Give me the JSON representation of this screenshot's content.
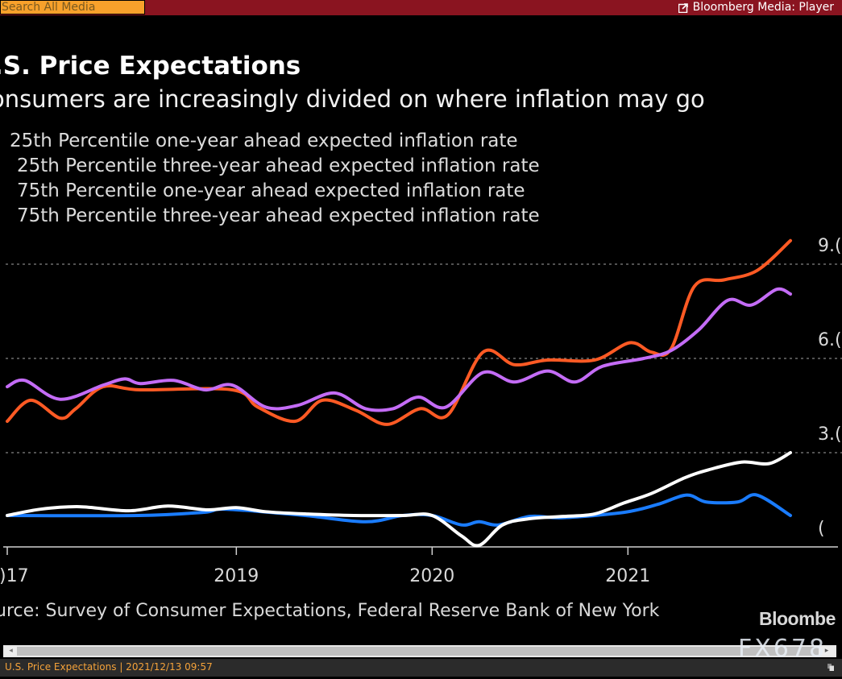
{
  "topbar": {
    "search_placeholder": "Search All Media",
    "player_label": "Bloomberg Media: Player",
    "player_icon": "external-link-icon"
  },
  "chart_data": {
    "type": "line",
    "title": ".S. Price Expectations",
    "subtitle": "onsumers are increasingly divided on where inflation may go",
    "xlabel": "",
    "ylabel": "",
    "ylim": [
      0,
      10
    ],
    "y_ticks": [
      0,
      3,
      6,
      9
    ],
    "y_tick_labels": [
      "(",
      "3.(",
      "6.(",
      "9.("
    ],
    "x_ticks": [
      {
        "label": ")17",
        "x": 2017.83
      },
      {
        "label": "2019",
        "x": 2019.0
      },
      {
        "label": "2020",
        "x": 2020.0
      },
      {
        "label": "2021",
        "x": 2021.0
      }
    ],
    "x_range": [
      2017.83,
      2021.83
    ],
    "grid": "horizontal-dotted",
    "legend_placement": "top-left",
    "source": "urce: Survey of Consumer Expectations, Federal Reserve Bank of New York",
    "series": [
      {
        "name": "25th Percentile one-year ahead expected inflation rate",
        "color": "#ffffff",
        "x": [
          2017.83,
          2018.0,
          2018.2,
          2018.45,
          2018.65,
          2018.85,
          2019.0,
          2019.15,
          2019.35,
          2019.6,
          2019.85,
          2020.0,
          2020.15,
          2020.24,
          2020.36,
          2020.5,
          2020.67,
          2020.83,
          2020.98,
          2021.12,
          2021.29,
          2021.41,
          2021.58,
          2021.72,
          2021.83
        ],
        "values": [
          1.0,
          1.2,
          1.28,
          1.15,
          1.3,
          1.18,
          1.25,
          1.12,
          1.05,
          1.0,
          1.0,
          1.0,
          0.35,
          0.05,
          0.7,
          0.9,
          0.97,
          1.05,
          1.4,
          1.7,
          2.2,
          2.45,
          2.7,
          2.65,
          3.0
        ]
      },
      {
        "name": "25th Percentile three-year ahead expected inflation rate",
        "color": "#1a7cff",
        "x": [
          2017.83,
          2018.5,
          2018.83,
          2018.95,
          2019.35,
          2019.66,
          2019.85,
          2020.0,
          2020.15,
          2020.24,
          2020.34,
          2020.5,
          2020.67,
          2020.98,
          2021.15,
          2021.3,
          2021.4,
          2021.56,
          2021.66,
          2021.83
        ],
        "values": [
          1.0,
          1.0,
          1.1,
          1.2,
          1.0,
          0.8,
          1.0,
          1.0,
          0.7,
          0.8,
          0.7,
          0.97,
          0.93,
          1.1,
          1.35,
          1.65,
          1.43,
          1.43,
          1.65,
          1.0
        ]
      },
      {
        "name": "75th Percentile one-year ahead expected inflation rate",
        "color": "#ff5a24",
        "x": [
          2017.83,
          2017.95,
          2018.1,
          2018.18,
          2018.32,
          2018.51,
          2018.98,
          2019.11,
          2019.3,
          2019.44,
          2019.61,
          2019.77,
          2019.94,
          2020.08,
          2020.26,
          2020.42,
          2020.59,
          2020.83,
          2021.01,
          2021.12,
          2021.22,
          2021.34,
          2021.49,
          2021.66,
          2021.83
        ],
        "values": [
          4.0,
          4.67,
          4.1,
          4.4,
          5.1,
          5.0,
          5.0,
          4.45,
          4.0,
          4.67,
          4.35,
          3.9,
          4.4,
          4.2,
          6.2,
          5.8,
          5.95,
          5.95,
          6.5,
          6.2,
          6.3,
          8.3,
          8.5,
          8.8,
          9.75
        ]
      },
      {
        "name": "75th Percentile three-year ahead expected inflation rate",
        "color": "#c46cf6",
        "x": [
          2017.83,
          2017.92,
          2018.1,
          2018.32,
          2018.43,
          2018.51,
          2018.68,
          2018.84,
          2018.98,
          2019.15,
          2019.31,
          2019.5,
          2019.66,
          2019.8,
          2019.93,
          2020.07,
          2020.26,
          2020.42,
          2020.59,
          2020.73,
          2020.87,
          2021.08,
          2021.22,
          2021.36,
          2021.51,
          2021.63,
          2021.76,
          2021.83
        ],
        "values": [
          5.1,
          5.3,
          4.7,
          5.15,
          5.35,
          5.2,
          5.3,
          5.0,
          5.15,
          4.45,
          4.5,
          4.9,
          4.4,
          4.4,
          4.77,
          4.45,
          5.55,
          5.25,
          5.6,
          5.25,
          5.75,
          6.0,
          6.25,
          6.9,
          7.85,
          7.7,
          8.2,
          8.05
        ]
      }
    ]
  },
  "footer": {
    "logo": "Bloombe",
    "watermark": "FX678",
    "status_text": "U.S. Price Expectations | 2021/12/13 09:57",
    "scroll_left_glyph": "◂",
    "scroll_right_glyph": "▸"
  }
}
